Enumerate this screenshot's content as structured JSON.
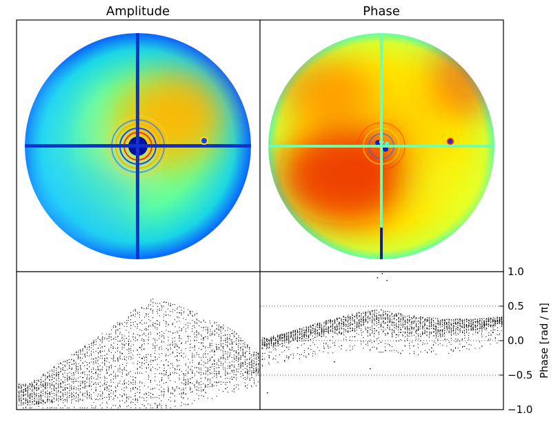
{
  "chart_data": [
    {
      "type": "heatmap",
      "title": "Amplitude",
      "colormap": "jet",
      "features": [
        "circular pupil",
        "cross-shaped support struts",
        "central obscuration with concentric rings",
        "small defect right of center"
      ]
    },
    {
      "type": "heatmap",
      "title": "Phase",
      "colormap": "jet",
      "features": [
        "circular pupil",
        "cross-shaped support struts",
        "speckle around center",
        "small defect right of center"
      ]
    },
    {
      "type": "scatter",
      "panel": "amplitude-profile",
      "xticks": [],
      "yticks": [],
      "grid": false,
      "description_trend": "point density rising from left to a peak just right of center, then falling",
      "columns_x": [
        0.04,
        0.18,
        0.32,
        0.46,
        0.54,
        0.62,
        0.76,
        0.9,
        0.98
      ],
      "columns_y_top": [
        0.18,
        0.35,
        0.52,
        0.7,
        0.82,
        0.8,
        0.7,
        0.58,
        0.42
      ],
      "columns_y_bottom": [
        0.02,
        0.05,
        0.06,
        0.06,
        0.05,
        0.07,
        0.12,
        0.2,
        0.24
      ]
    },
    {
      "type": "scatter",
      "panel": "phase-profile",
      "ylabel": "Phase [rad / π]",
      "ylim": [
        -1.0,
        1.0
      ],
      "yticks": [
        -1.0,
        -0.5,
        0.0,
        0.5,
        1.0
      ],
      "ytick_labels": [
        "−1.0",
        "−0.5",
        "0.0",
        "0.5",
        "1.0"
      ],
      "reference_lines_y": [
        -0.5,
        0.0,
        0.5
      ],
      "reference_line_style": "dotted",
      "columns_x": [
        0.02,
        0.1,
        0.25,
        0.4,
        0.5,
        0.6,
        0.75,
        0.9,
        0.98
      ],
      "columns_y_top": [
        0.05,
        0.12,
        0.28,
        0.42,
        0.46,
        0.38,
        0.32,
        0.32,
        0.35
      ],
      "columns_y_bottom": [
        -0.12,
        -0.05,
        0.05,
        0.12,
        0.08,
        0.05,
        0.05,
        0.12,
        0.22
      ],
      "outliers": [
        [
          0.48,
          0.92
        ],
        [
          0.5,
          0.98
        ],
        [
          0.52,
          0.88
        ],
        [
          0.02,
          -0.75
        ],
        [
          0.45,
          -0.4
        ],
        [
          0.3,
          -0.3
        ]
      ]
    }
  ]
}
